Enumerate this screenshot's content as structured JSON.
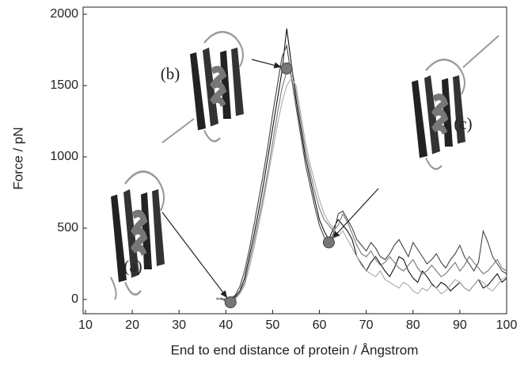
{
  "chart_data": {
    "type": "line",
    "xlabel": "End to end distance of protein / Ångstrom",
    "ylabel": "Force / pN",
    "xlim": [
      9.5,
      100
    ],
    "ylim": [
      -100,
      2050
    ],
    "xticks": [
      10,
      20,
      30,
      40,
      50,
      60,
      70,
      80,
      90,
      100
    ],
    "yticks": [
      0,
      500,
      1000,
      1500,
      2000
    ],
    "x": [
      38,
      39,
      40,
      41,
      42,
      43,
      44,
      45,
      46,
      47,
      48,
      49,
      50,
      51,
      52,
      53,
      54,
      55,
      56,
      57,
      58,
      59,
      60,
      61,
      62,
      63,
      64,
      65,
      66,
      67,
      68,
      69,
      70,
      71,
      72,
      73,
      74,
      75,
      76,
      77,
      78,
      79,
      80,
      81,
      82,
      83,
      84,
      85,
      86,
      87,
      88,
      89,
      90,
      91,
      92,
      93,
      94,
      95,
      96,
      97,
      98,
      99,
      100
    ],
    "series": [
      {
        "color": "#111111",
        "values": [
          0,
          5,
          -10,
          0,
          20,
          60,
          150,
          300,
          450,
          620,
          800,
          1000,
          1200,
          1400,
          1600,
          1900,
          1650,
          1400,
          1200,
          1000,
          850,
          700,
          560,
          480,
          420,
          500,
          560,
          520,
          480,
          420,
          300,
          250,
          200,
          260,
          300,
          250,
          200,
          160,
          220,
          300,
          280,
          200,
          150,
          120,
          200,
          160,
          110,
          80,
          120,
          100,
          60,
          90,
          120,
          80,
          60,
          100,
          140,
          80,
          100,
          140,
          180,
          120,
          150
        ]
      },
      {
        "color": "#444444",
        "values": [
          10,
          0,
          -5,
          5,
          30,
          90,
          200,
          350,
          520,
          700,
          880,
          1080,
          1300,
          1500,
          1700,
          1780,
          1560,
          1350,
          1150,
          950,
          800,
          650,
          520,
          440,
          400,
          460,
          600,
          620,
          560,
          500,
          420,
          380,
          340,
          400,
          360,
          300,
          280,
          320,
          380,
          420,
          360,
          300,
          400,
          350,
          300,
          250,
          280,
          320,
          260,
          220,
          280,
          320,
          380,
          300,
          250,
          200,
          260,
          480,
          400,
          300,
          250,
          200,
          180
        ]
      },
      {
        "color": "#777777",
        "values": [
          0,
          10,
          0,
          -5,
          10,
          50,
          120,
          260,
          400,
          560,
          720,
          900,
          1100,
          1300,
          1480,
          1600,
          1650,
          1450,
          1250,
          1050,
          900,
          760,
          640,
          560,
          520,
          480,
          520,
          600,
          540,
          460,
          380,
          320,
          300,
          340,
          280,
          240,
          260,
          300,
          260,
          220,
          200,
          240,
          280,
          220,
          180,
          200,
          240,
          200,
          160,
          180,
          220,
          260,
          200,
          240,
          300,
          260,
          220,
          180,
          200,
          240,
          280,
          220,
          200
        ]
      },
      {
        "color": "#aaaaaa",
        "values": [
          5,
          0,
          10,
          0,
          0,
          40,
          100,
          220,
          360,
          520,
          680,
          860,
          1040,
          1220,
          1380,
          1500,
          1550,
          1500,
          1300,
          1100,
          950,
          820,
          700,
          600,
          540,
          500,
          440,
          480,
          420,
          360,
          300,
          240,
          200,
          180,
          160,
          200,
          140,
          120,
          100,
          80,
          120,
          100,
          60,
          40,
          80,
          60,
          100,
          80,
          40,
          60,
          100,
          140,
          120,
          80,
          60,
          100,
          140,
          120,
          80,
          60,
          100,
          140,
          160
        ]
      }
    ],
    "points": [
      {
        "label": "(a)",
        "x": 41,
        "y": -20
      },
      {
        "label": "(b)",
        "x": 53,
        "y": 1620
      },
      {
        "label": "(c)",
        "x": 62,
        "y": 400
      }
    ]
  }
}
